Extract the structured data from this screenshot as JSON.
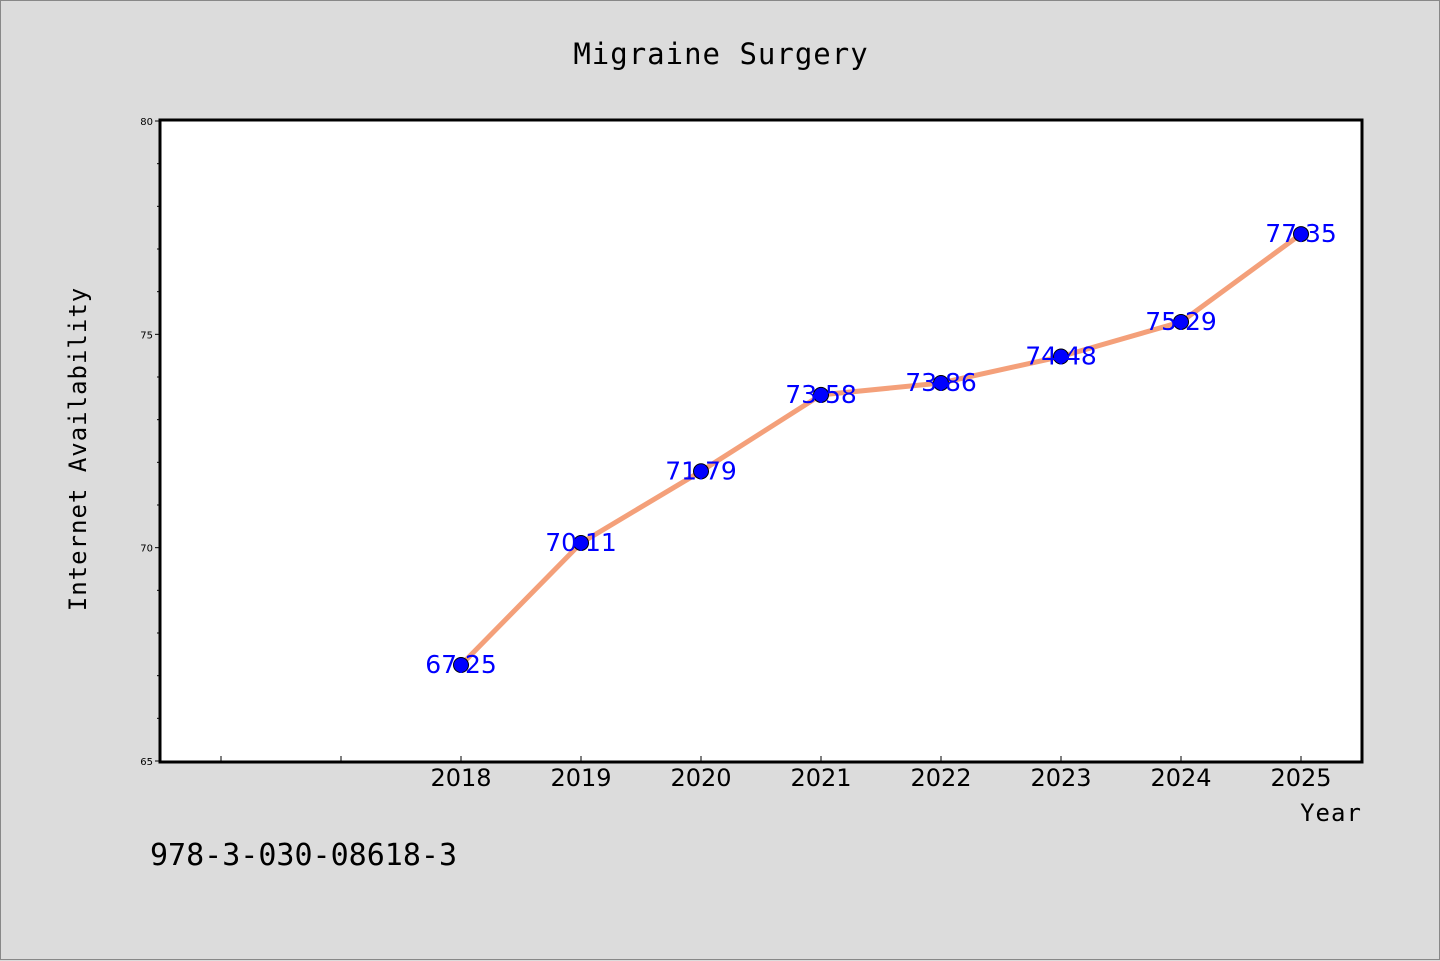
{
  "chart_data": {
    "type": "line",
    "title": "Migraine Surgery",
    "xlabel": "Year",
    "ylabel": "Internet Availability",
    "x": [
      "2018",
      "2019",
      "2020",
      "2021",
      "2022",
      "2023",
      "2024",
      "2025"
    ],
    "series": [
      {
        "values": [
          67.25,
          70.11,
          71.79,
          73.58,
          73.86,
          74.48,
          75.29,
          77.35
        ],
        "data_labels": [
          "67.25",
          "70.11",
          "71.79",
          "73.58",
          "73.86",
          "74.48",
          "75.29",
          "77.35"
        ]
      }
    ],
    "ylim": [
      65,
      80
    ],
    "yticks": [
      "65",
      "70",
      "75",
      "80"
    ],
    "grid": false,
    "line_color": "#f4a07a",
    "marker_color": "#0000ff",
    "label_color": "#0000ff"
  },
  "footer": {
    "isbn": "978-3-030-08618-3"
  }
}
